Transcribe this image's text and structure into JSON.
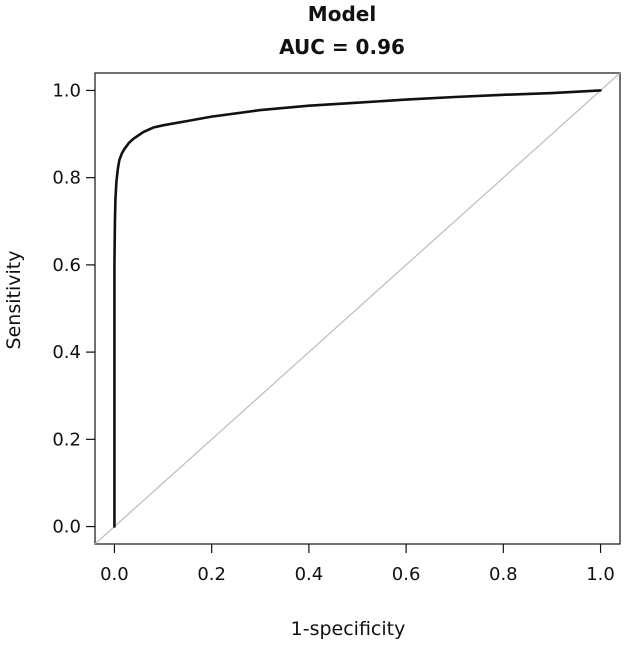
{
  "chart_data": {
    "type": "line",
    "title": "Model",
    "subtitle": "AUC = 0.96",
    "xlabel": "1-specificity",
    "ylabel": "Sensitivity",
    "xlim": [
      -0.04,
      1.04
    ],
    "ylim": [
      -0.04,
      1.04
    ],
    "x_ticks": [
      "0.0",
      "0.2",
      "0.4",
      "0.6",
      "0.8",
      "1.0"
    ],
    "y_ticks": [
      "0.0",
      "0.2",
      "0.4",
      "0.6",
      "0.8",
      "1.0"
    ],
    "grid": false,
    "series": [
      {
        "color": "#111111",
        "x": [
          0.0,
          0.0,
          0.001,
          0.002,
          0.004,
          0.007,
          0.01,
          0.015,
          0.02,
          0.03,
          0.04,
          0.06,
          0.08,
          0.1,
          0.15,
          0.2,
          0.3,
          0.4,
          0.5,
          0.6,
          0.7,
          0.8,
          0.9,
          1.0
        ],
        "y": [
          0.0,
          0.6,
          0.7,
          0.75,
          0.79,
          0.82,
          0.84,
          0.855,
          0.865,
          0.88,
          0.89,
          0.905,
          0.915,
          0.92,
          0.93,
          0.94,
          0.955,
          0.965,
          0.972,
          0.979,
          0.985,
          0.99,
          0.994,
          1.0
        ]
      },
      {
        "color": "#c0c0c0",
        "x": [
          -0.04,
          1.04
        ],
        "y": [
          -0.04,
          1.04
        ]
      }
    ]
  }
}
